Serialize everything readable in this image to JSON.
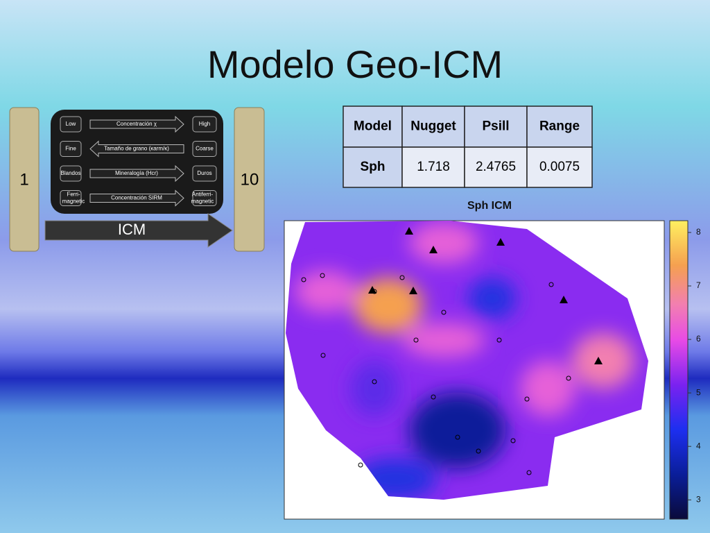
{
  "title": "Modelo  Geo-ICM",
  "scale": {
    "low": "1",
    "high": "10",
    "arrow": "ICM"
  },
  "diagram": {
    "rows": [
      {
        "left": "Low",
        "middle": "Concentración  χ",
        "right": "High"
      },
      {
        "left": "Fine",
        "middle": "Tamaño de grano (κarm/κ)",
        "right": "Coarse"
      },
      {
        "left": "Blandos",
        "middle": "Mineralogía (Hcr)",
        "right": "Duros"
      },
      {
        "left": "Ferri-magnetic",
        "middle": "Concentración   SIRM",
        "right": "Antiferri-magnetic"
      }
    ]
  },
  "table": {
    "header": [
      "Model",
      "Nugget",
      "Psill",
      "Range"
    ],
    "rows": [
      [
        "Sph",
        "1.718",
        "2.4765",
        "0.0075"
      ]
    ]
  },
  "map": {
    "title": "Sph ICM",
    "colorbar": {
      "lim": [
        2.64,
        8.22
      ],
      "ticks": [
        3,
        4,
        5,
        6,
        7,
        8
      ]
    }
  }
}
